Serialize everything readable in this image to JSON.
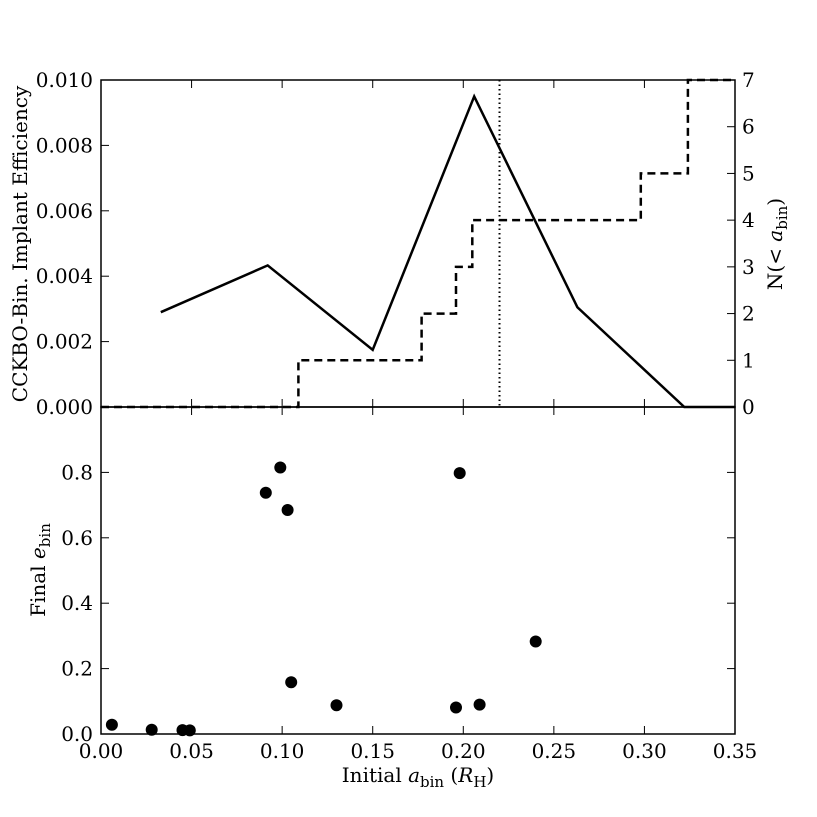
{
  "chart_data": [
    {
      "type": "line",
      "panel": "top",
      "ylabel": "CCKBO-Bin. Implant Efficiency",
      "y2label_main": "N(< ",
      "y2label_var": "a",
      "y2label_sub": "bin",
      "y2label_close": ")",
      "xlim": [
        0.0,
        0.35
      ],
      "ylim": [
        0.0,
        0.01
      ],
      "y2lim": [
        0,
        7
      ],
      "xticks": [
        0.0,
        0.05,
        0.1,
        0.15,
        0.2,
        0.25,
        0.3,
        0.35
      ],
      "yticks": [
        "0.000",
        "0.002",
        "0.004",
        "0.006",
        "0.008",
        "0.010"
      ],
      "y2ticks": [
        "0",
        "1",
        "2",
        "3",
        "4",
        "5",
        "6",
        "7"
      ],
      "vline_x": 0.22,
      "series": [
        {
          "style": "solid",
          "axis": "left",
          "x": [
            0.033,
            0.092,
            0.15,
            0.206,
            0.263,
            0.322,
            0.35
          ],
          "y": [
            0.0029,
            0.00433,
            0.00175,
            0.0095,
            0.00305,
            0.0,
            0.0
          ]
        },
        {
          "style": "dashed",
          "axis": "right",
          "drawstyle": "steps",
          "x": [
            0.0,
            0.109,
            0.177,
            0.196,
            0.205,
            0.298,
            0.324,
            0.35
          ],
          "y": [
            0,
            1,
            2,
            3,
            4,
            5,
            7,
            7
          ]
        }
      ]
    },
    {
      "type": "scatter",
      "panel": "bottom",
      "ylabel_main": "Final ",
      "ylabel_var": "e",
      "ylabel_sub": "bin",
      "xlabel_main": "Initial ",
      "xlabel_var": "a",
      "xlabel_sub": "bin",
      "xlabel_unit_open": " (",
      "xlabel_unit_var": "R",
      "xlabel_unit_sub": "H",
      "xlabel_unit_close": ")",
      "xlim": [
        0.0,
        0.35
      ],
      "ylim": [
        0.0,
        1.0
      ],
      "xticks": [
        "0.00",
        "0.05",
        "0.10",
        "0.15",
        "0.20",
        "0.25",
        "0.30",
        "0.35"
      ],
      "yticks": [
        "0.0",
        "0.2",
        "0.4",
        "0.6",
        "0.8"
      ],
      "x": [
        0.006,
        0.028,
        0.045,
        0.049,
        0.091,
        0.099,
        0.103,
        0.105,
        0.13,
        0.196,
        0.198,
        0.209,
        0.24
      ],
      "y": [
        0.028,
        0.013,
        0.012,
        0.011,
        0.738,
        0.815,
        0.685,
        0.158,
        0.088,
        0.081,
        0.798,
        0.09,
        0.283
      ]
    }
  ]
}
